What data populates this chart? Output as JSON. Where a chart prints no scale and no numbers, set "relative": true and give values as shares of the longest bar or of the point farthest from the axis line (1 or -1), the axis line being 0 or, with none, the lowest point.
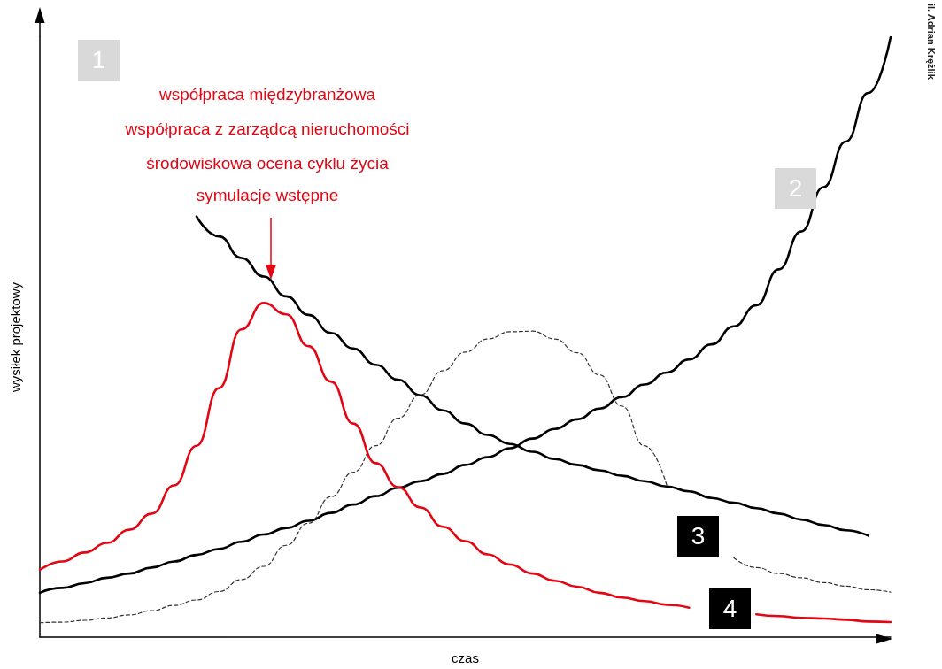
{
  "chart_data": {
    "type": "line",
    "relative": true,
    "xlabel": "czas",
    "ylabel": "wysiłek projektowy",
    "grid": false,
    "marker": "none",
    "categories": [
      null,
      null,
      null,
      null,
      null,
      null,
      null,
      null,
      null,
      null,
      null,
      null,
      null,
      null,
      null,
      null,
      null,
      null,
      null,
      null,
      null,
      null,
      null,
      null,
      null,
      null,
      null,
      null,
      null,
      null,
      null,
      null,
      null,
      null,
      null,
      null,
      null,
      null,
      null
    ],
    "series": [
      {
        "color": "#000000",
        "values": [
          null,
          null,
          null,
          null,
          null,
          null,
          null,
          0.701,
          0.668,
          0.632,
          0.601,
          0.568,
          0.537,
          0.507,
          0.481,
          0.454,
          0.429,
          0.403,
          0.378,
          0.356,
          0.337,
          0.322,
          0.309,
          0.297,
          0.287,
          0.278,
          0.269,
          0.26,
          0.251,
          0.243,
          0.232,
          0.224,
          0.215,
          0.206,
          0.196,
          0.187,
          0.178,
          0.169,
          null
        ]
      },
      {
        "color": "#000000",
        "values": [
          0.074,
          0.082,
          0.09,
          0.099,
          0.106,
          0.116,
          0.126,
          0.137,
          0.147,
          0.159,
          0.171,
          0.182,
          0.194,
          0.207,
          0.221,
          0.235,
          0.249,
          0.26,
          0.272,
          0.287,
          0.3,
          0.315,
          0.331,
          0.347,
          0.363,
          0.381,
          0.4,
          0.421,
          0.441,
          0.463,
          0.488,
          0.518,
          0.553,
          0.613,
          0.676,
          0.75,
          0.826,
          0.907,
          1
        ]
      },
      {
        "color": "#333333",
        "line_style": "dashed",
        "values": [
          0.024,
          0.025,
          0.028,
          0.032,
          0.037,
          0.044,
          0.053,
          0.062,
          0.076,
          0.096,
          0.118,
          0.153,
          0.19,
          0.234,
          0.275,
          0.319,
          0.365,
          0.404,
          0.444,
          0.475,
          0.497,
          0.509,
          0.51,
          0.497,
          0.474,
          0.437,
          0.385,
          0.319,
          0.253,
          null,
          null,
          0.132,
          0.116,
          0.106,
          0.099,
          0.091,
          0.085,
          0.079,
          0.075
        ]
      },
      {
        "color": "#e30613",
        "values": [
          0.112,
          0.126,
          0.141,
          0.157,
          0.179,
          0.206,
          0.253,
          0.319,
          0.415,
          0.513,
          0.557,
          0.538,
          0.485,
          0.426,
          0.356,
          0.29,
          0.25,
          0.216,
          0.184,
          0.16,
          0.138,
          0.121,
          0.106,
          0.094,
          0.084,
          0.074,
          0.066,
          0.06,
          0.054,
          0.049,
          null,
          null,
          0.038,
          0.035,
          0.032,
          0.031,
          0.029,
          0.026,
          0.025
        ]
      }
    ],
    "annotations": [
      "1",
      "2",
      "3",
      "4",
      "współpraca międzybranżowa",
      "współpraca z zarządcą nieruchomości",
      "środowiskowa ocena cyklu życia",
      "symulacje wstępne",
      "il. Adrian Krężlik"
    ]
  }
}
